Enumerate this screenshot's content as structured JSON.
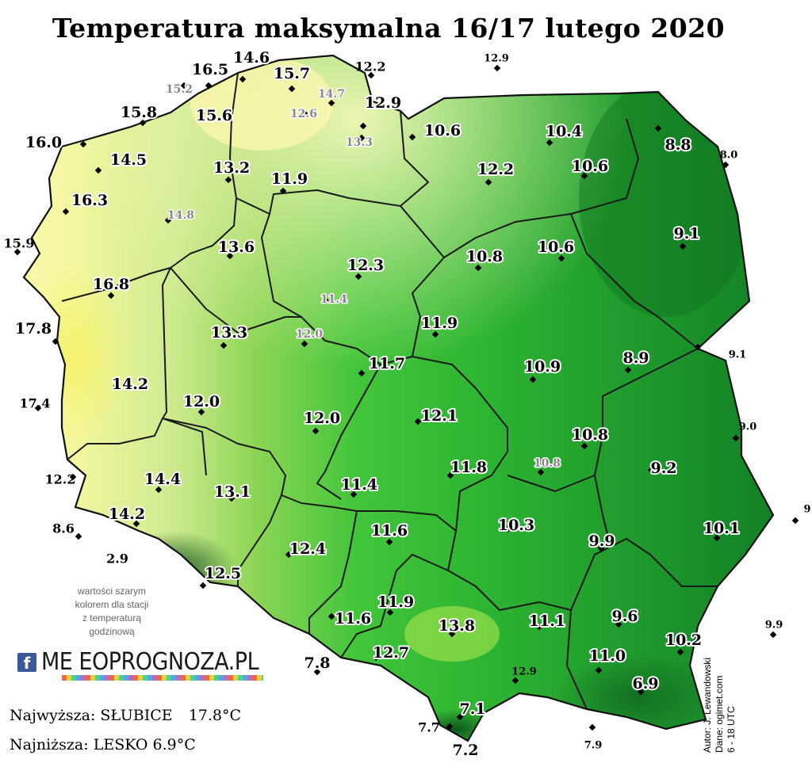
{
  "title": "Temperatura maksymalna 16/17 lutego 2020",
  "unit": "°C",
  "note": [
    "wartości szarym",
    "kolorem dla stacji",
    "z temperaturą",
    "godzinową"
  ],
  "logo": {
    "icon": "facebook-icon",
    "text": "METEOPROGNOZA.PL",
    "display_text": "ME  EOPROGNOZA.PL"
  },
  "extremes": {
    "max_label": "Najwyższa:",
    "max_station": "SŁUBICE",
    "max_value": "17.8°C",
    "min_label": "Najniższa:",
    "min_station": "LESKO",
    "min_value": "6.9°C"
  },
  "credits": [
    "Autor: J. Lewandowski",
    "Dane: ogimet.com",
    "6 - 18 UTC"
  ],
  "colors": {
    "warmest": "#fffdb8",
    "warm": "#d6f0a0",
    "mid": "#8fd45a",
    "green": "#3fc23a",
    "cool": "#1f9e2e",
    "coolest": "#0f7a22",
    "border": "#1a1a1a",
    "grey_value": "#888888"
  },
  "stations": [
    {
      "value": "14.6",
      "style": "in"
    },
    {
      "value": "16.5",
      "style": "in"
    },
    {
      "value": "15.7",
      "style": "in"
    },
    {
      "value": "12.2",
      "style": "out"
    },
    {
      "value": "12.9",
      "style": "out"
    },
    {
      "value": "15.2",
      "style": "grey"
    },
    {
      "value": "14.7",
      "style": "grey"
    },
    {
      "value": "15.8",
      "style": "in"
    },
    {
      "value": "15.6",
      "style": "in"
    },
    {
      "value": "12.6",
      "style": "grey"
    },
    {
      "value": "12.9",
      "style": "in"
    },
    {
      "value": "16.0",
      "style": "in"
    },
    {
      "value": "13.3",
      "style": "grey"
    },
    {
      "value": "10.6",
      "style": "in"
    },
    {
      "value": "10.4",
      "style": "in"
    },
    {
      "value": "8.8",
      "style": "in"
    },
    {
      "value": "14.5",
      "style": "in"
    },
    {
      "value": "13.2",
      "style": "in"
    },
    {
      "value": "8.0",
      "style": "out"
    },
    {
      "value": "12.2",
      "style": "in"
    },
    {
      "value": "10.6",
      "style": "in"
    },
    {
      "value": "11.9",
      "style": "in"
    },
    {
      "value": "16.3",
      "style": "in"
    },
    {
      "value": "14.8",
      "style": "grey"
    },
    {
      "value": "9.1",
      "style": "in"
    },
    {
      "value": "15.9",
      "style": "out"
    },
    {
      "value": "13.6",
      "style": "in"
    },
    {
      "value": "10.6",
      "style": "in"
    },
    {
      "value": "10.8",
      "style": "in"
    },
    {
      "value": "12.3",
      "style": "in"
    },
    {
      "value": "16.8",
      "style": "in"
    },
    {
      "value": "11.4",
      "style": "grey"
    },
    {
      "value": "17.8",
      "style": "in"
    },
    {
      "value": "11.9",
      "style": "in"
    },
    {
      "value": "12.0",
      "style": "grey"
    },
    {
      "value": "13.3",
      "style": "in"
    },
    {
      "value": "9.1",
      "style": "out"
    },
    {
      "value": "8.9",
      "style": "in"
    },
    {
      "value": "11.7",
      "style": "in"
    },
    {
      "value": "10.9",
      "style": "in"
    },
    {
      "value": "14.2",
      "style": "in"
    },
    {
      "value": "17.4",
      "style": "out"
    },
    {
      "value": "12.0",
      "style": "in"
    },
    {
      "value": "12.1",
      "style": "in"
    },
    {
      "value": "12.0",
      "style": "in"
    },
    {
      "value": "9.0",
      "style": "out"
    },
    {
      "value": "10.8",
      "style": "in"
    },
    {
      "value": "9.2",
      "style": "in"
    },
    {
      "value": "10.8",
      "style": "grey"
    },
    {
      "value": "11.8",
      "style": "in"
    },
    {
      "value": "12.2",
      "style": "out"
    },
    {
      "value": "14.4",
      "style": "in"
    },
    {
      "value": "13.1",
      "style": "in"
    },
    {
      "value": "11.4",
      "style": "in"
    },
    {
      "value": "14.2",
      "style": "in"
    },
    {
      "value": "9",
      "style": "out"
    },
    {
      "value": "10.3",
      "style": "in"
    },
    {
      "value": "10.1",
      "style": "in"
    },
    {
      "value": "8.6",
      "style": "out"
    },
    {
      "value": "11.6",
      "style": "in"
    },
    {
      "value": "12.4",
      "style": "in"
    },
    {
      "value": "9.9",
      "style": "in"
    },
    {
      "value": "2.9",
      "style": "out"
    },
    {
      "value": "12.5",
      "style": "in"
    },
    {
      "value": "11.9",
      "style": "in"
    },
    {
      "value": "9.6",
      "style": "in"
    },
    {
      "value": "11.6",
      "style": "in"
    },
    {
      "value": "11.1",
      "style": "in"
    },
    {
      "value": "9.9",
      "style": "out"
    },
    {
      "value": "13.8",
      "style": "in"
    },
    {
      "value": "10.2",
      "style": "in"
    },
    {
      "value": "12.7",
      "style": "in"
    },
    {
      "value": "7.8",
      "style": "in"
    },
    {
      "value": "12.9",
      "style": "out"
    },
    {
      "value": "11.0",
      "style": "in"
    },
    {
      "value": "6.9",
      "style": "in"
    },
    {
      "value": "7.1",
      "style": "in"
    },
    {
      "value": "7.7",
      "style": "out"
    },
    {
      "value": "7.9",
      "style": "out"
    },
    {
      "value": "7.2",
      "style": "in"
    }
  ]
}
